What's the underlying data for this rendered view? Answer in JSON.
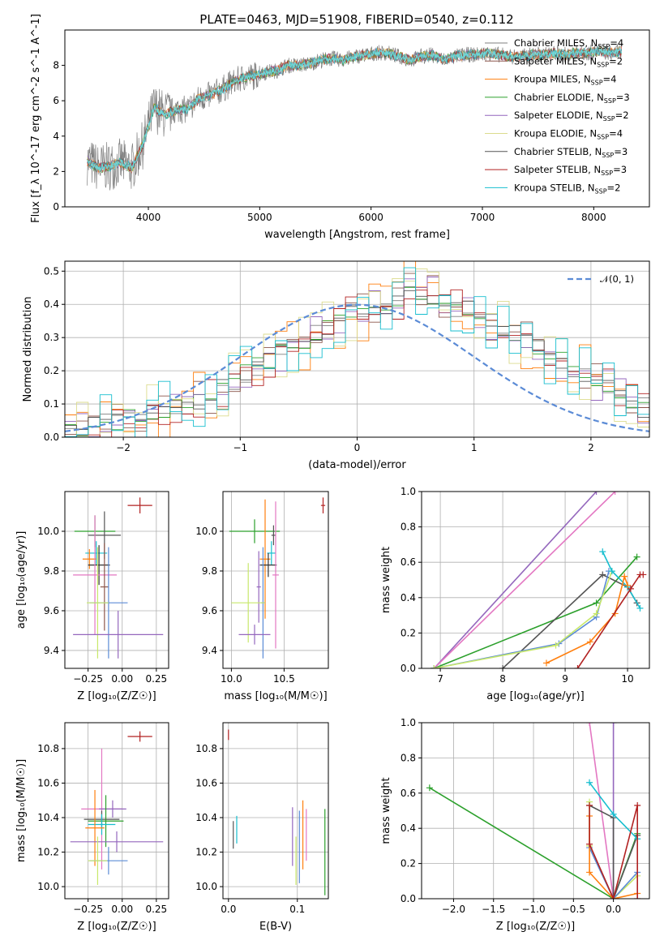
{
  "figure_title": "PLATE=0463, MJD=51908, FIBERID=0540, z=0.112",
  "models": [
    {
      "name": "Chabrier MILES",
      "nssp": 4,
      "color": "#7f7f7f"
    },
    {
      "name": "Salpeter MILES",
      "nssp": 2,
      "color": "#8c564b"
    },
    {
      "name": "Kroupa MILES",
      "nssp": 4,
      "color": "#ff7f0e"
    },
    {
      "name": "Chabrier ELODIE",
      "nssp": 3,
      "color": "#2ca02c"
    },
    {
      "name": "Salpeter ELODIE",
      "nssp": 2,
      "color": "#9467bd"
    },
    {
      "name": "Kroupa ELODIE",
      "nssp": 4,
      "color": "#dbdb8d"
    },
    {
      "name": "Chabrier STELIB",
      "nssp": 3,
      "color": "#555555"
    },
    {
      "name": "Salpeter STELIB",
      "nssp": 3,
      "color": "#b22222"
    },
    {
      "name": "Kroupa STELIB",
      "nssp": 2,
      "color": "#17becf"
    }
  ],
  "chart_data": [
    {
      "id": "spectrum",
      "type": "line",
      "xlabel": "wavelength [Angstrom, rest frame]",
      "ylabel": "Flux [f_λ 10^-17 erg cm^-2 s^-1 A^-1]",
      "xlim": [
        3250,
        8500
      ],
      "ylim": [
        0,
        10
      ],
      "xticks": [
        4000,
        5000,
        6000,
        7000,
        8000
      ],
      "yticks": [
        0,
        2,
        4,
        6,
        8
      ],
      "legend_position": "top-right",
      "x": [
        3450,
        3550,
        3650,
        3750,
        3850,
        3950,
        4050,
        4150,
        4250,
        4350,
        4450,
        4550,
        4650,
        4750,
        4850,
        4950,
        5050,
        5150,
        5250,
        5350,
        5450,
        5550,
        5650,
        5750,
        5850,
        5950,
        6050,
        6150,
        6250,
        6350,
        6450,
        6550,
        6650,
        6750,
        6850,
        6950,
        7050,
        7150,
        7250,
        7350,
        7450,
        7550,
        7650,
        7750,
        7850,
        7950,
        8050,
        8150,
        8250
      ],
      "flux": [
        2.6,
        2.2,
        2.3,
        2.5,
        2.2,
        3.5,
        5.6,
        5.2,
        5.5,
        5.5,
        6.1,
        6.3,
        6.6,
        7.0,
        7.3,
        7.4,
        7.6,
        7.7,
        8.0,
        8.0,
        8.1,
        8.3,
        8.4,
        8.3,
        8.5,
        8.6,
        8.7,
        8.7,
        8.5,
        8.3,
        8.5,
        8.6,
        8.3,
        8.5,
        8.6,
        8.6,
        8.7,
        8.6,
        8.5,
        8.5,
        8.6,
        8.6,
        8.7,
        8.6,
        8.7,
        8.7,
        8.8,
        8.7,
        8.8
      ],
      "observed_color": "#808080",
      "model_color": "#6fd6d6"
    },
    {
      "id": "residuals",
      "type": "line",
      "xlabel": "(data-model)/error",
      "ylabel": "Normed distribution",
      "xlim": [
        -2.5,
        2.5
      ],
      "ylim": [
        0,
        0.53
      ],
      "xticks": [
        -2,
        -1,
        0,
        1,
        2
      ],
      "yticks": [
        0.0,
        0.1,
        0.2,
        0.3,
        0.4,
        0.5
      ],
      "legend": [
        {
          "name": "𝒩(0, 1)",
          "color": "#5b8bd6"
        }
      ],
      "legend_position": "top-right",
      "bin_width": 0.1,
      "bin_start": -2.5,
      "heights": [
        0.012,
        0.025,
        0.03,
        0.04,
        0.048,
        0.055,
        0.06,
        0.07,
        0.08,
        0.09,
        0.1,
        0.11,
        0.13,
        0.15,
        0.17,
        0.19,
        0.21,
        0.23,
        0.25,
        0.27,
        0.29,
        0.31,
        0.33,
        0.35,
        0.37,
        0.38,
        0.39,
        0.38,
        0.4,
        0.45,
        0.44,
        0.43,
        0.4,
        0.39,
        0.38,
        0.36,
        0.35,
        0.33,
        0.31,
        0.29,
        0.27,
        0.25,
        0.23,
        0.21,
        0.19,
        0.17,
        0.15,
        0.13,
        0.11,
        0.09
      ]
    },
    {
      "id": "age-vs-z",
      "type": "scatter",
      "xlabel": "Z [log₁₀(Z/Z☉)]",
      "ylabel": "age  [log₁₀(age/yr)]",
      "xlim": [
        -0.42,
        0.34
      ],
      "ylim": [
        9.31,
        10.2
      ],
      "xticks": [
        -0.25,
        0.0,
        0.25
      ],
      "yticks": [
        9.4,
        9.6,
        9.8,
        10.0
      ],
      "points": [
        {
          "x": -0.2,
          "y": 10.0,
          "xerr": 0.15,
          "yerr": 0.08,
          "color": "#2ca02c"
        },
        {
          "x": -0.13,
          "y": 9.98,
          "xerr": 0.12,
          "yerr": 0.12,
          "color": "#555555"
        },
        {
          "x": -0.19,
          "y": 9.89,
          "xerr": 0.08,
          "yerr": 0.06,
          "color": "#17becf"
        },
        {
          "x": -0.24,
          "y": 9.86,
          "xerr": 0.05,
          "yerr": 0.05,
          "color": "#ff7f0e"
        },
        {
          "x": -0.17,
          "y": 9.83,
          "xerr": 0.08,
          "yerr": 0.1,
          "color": "#333333"
        },
        {
          "x": -0.2,
          "y": 9.78,
          "xerr": 0.16,
          "yerr": 0.3,
          "color": "#e377c2"
        },
        {
          "x": -0.13,
          "y": 9.72,
          "xerr": 0.03,
          "yerr": 0.22,
          "color": "#8c564b"
        },
        {
          "x": -0.1,
          "y": 9.64,
          "xerr": 0.14,
          "yerr": 0.28,
          "color": "#5b8bd6"
        },
        {
          "x": -0.18,
          "y": 9.64,
          "xerr": 0.08,
          "yerr": 0.28,
          "color": "#c8e86a"
        },
        {
          "x": -0.03,
          "y": 9.48,
          "xerr": 0.33,
          "yerr": 0.12,
          "color": "#9467bd"
        },
        {
          "x": 0.13,
          "y": 10.13,
          "xerr": 0.09,
          "yerr": 0.04,
          "color": "#b22222"
        }
      ]
    },
    {
      "id": "age-vs-mass",
      "type": "scatter",
      "xlabel": "mass [log₁₀(M/M☉)]",
      "ylabel": "",
      "xlim": [
        9.92,
        10.92
      ],
      "ylim": [
        9.31,
        10.2
      ],
      "xticks": [
        10.0,
        10.5
      ],
      "yticks": [
        9.4,
        9.6,
        9.8,
        10.0
      ],
      "points": [
        {
          "x": 10.22,
          "y": 10.0,
          "xerr": 0.24,
          "yerr": 0.06,
          "color": "#2ca02c"
        },
        {
          "x": 10.4,
          "y": 9.98,
          "xerr": 0.02,
          "yerr": 0.05,
          "color": "#555555"
        },
        {
          "x": 10.38,
          "y": 9.89,
          "xerr": 0.04,
          "yerr": 0.06,
          "color": "#17becf"
        },
        {
          "x": 10.32,
          "y": 9.86,
          "xerr": 0.05,
          "yerr": 0.3,
          "color": "#ff7f0e"
        },
        {
          "x": 10.35,
          "y": 9.83,
          "xerr": 0.08,
          "yerr": 0.06,
          "color": "#333333"
        },
        {
          "x": 10.42,
          "y": 9.78,
          "xerr": 0.03,
          "yerr": 0.37,
          "color": "#e377c2"
        },
        {
          "x": 10.26,
          "y": 9.72,
          "xerr": 0.02,
          "yerr": 0.18,
          "color": "#9467bd"
        },
        {
          "x": 10.3,
          "y": 9.64,
          "xerr": 0.02,
          "yerr": 0.28,
          "color": "#5b8bd6"
        },
        {
          "x": 10.16,
          "y": 9.64,
          "xerr": 0.16,
          "yerr": 0.2,
          "color": "#c8e86a"
        },
        {
          "x": 10.22,
          "y": 9.48,
          "xerr": 0.15,
          "yerr": 0.05,
          "color": "#9467bd"
        },
        {
          "x": 10.87,
          "y": 10.13,
          "xerr": 0.02,
          "yerr": 0.04,
          "color": "#b22222"
        }
      ]
    },
    {
      "id": "weight-vs-age",
      "type": "line",
      "xlabel": "age  [log₁₀(age/yr)]",
      "ylabel": "mass weight",
      "xlim": [
        6.7,
        10.35
      ],
      "ylim": [
        0,
        1
      ],
      "xticks": [
        7,
        8,
        9,
        10
      ],
      "yticks": [
        0.0,
        0.2,
        0.4,
        0.6,
        0.8,
        1.0
      ],
      "series": [
        {
          "color": "#9467bd",
          "x": [
            6.9,
            9.5
          ],
          "y": [
            0.0,
            1.0
          ]
        },
        {
          "color": "#e377c2",
          "x": [
            6.9,
            9.8
          ],
          "y": [
            0.0,
            1.0
          ]
        },
        {
          "color": "#2ca02c",
          "x": [
            6.9,
            9.5,
            10.15
          ],
          "y": [
            0.0,
            0.37,
            0.63
          ]
        },
        {
          "color": "#555555",
          "x": [
            8.0,
            9.6,
            10.0,
            10.15
          ],
          "y": [
            0.0,
            0.53,
            0.46,
            0.37
          ]
        },
        {
          "color": "#5b8bd6",
          "x": [
            6.9,
            8.9,
            9.5,
            9.7
          ],
          "y": [
            0.0,
            0.14,
            0.29,
            0.55
          ]
        },
        {
          "color": "#c8e86a",
          "x": [
            6.9,
            8.85,
            9.5,
            9.75
          ],
          "y": [
            0.0,
            0.13,
            0.31,
            0.55
          ]
        },
        {
          "color": "#17becf",
          "x": [
            9.6,
            9.75,
            10.0,
            10.2
          ],
          "y": [
            0.66,
            0.55,
            0.46,
            0.34
          ]
        },
        {
          "color": "#ff7f0e",
          "x": [
            8.7,
            9.4,
            9.8,
            9.95,
            10.0
          ],
          "y": [
            0.03,
            0.15,
            0.31,
            0.52,
            0.47
          ]
        },
        {
          "color": "#b22222",
          "x": [
            9.2,
            10.05,
            10.2,
            10.25
          ],
          "y": [
            0.0,
            0.45,
            0.53,
            0.53
          ]
        }
      ]
    },
    {
      "id": "mass-vs-z",
      "type": "scatter",
      "xlabel": "Z [log₁₀(Z/Z☉)]",
      "ylabel": "mass [log₁₀(M/M☉)]",
      "xlim": [
        -0.42,
        0.34
      ],
      "ylim": [
        9.93,
        10.95
      ],
      "xticks": [
        -0.25,
        0.0,
        0.25
      ],
      "yticks": [
        10.0,
        10.2,
        10.4,
        10.6,
        10.8
      ],
      "points": [
        {
          "x": -0.15,
          "y": 10.45,
          "xerr": 0.15,
          "yerr": 0.35,
          "color": "#e377c2"
        },
        {
          "x": -0.07,
          "y": 10.45,
          "xerr": 0.1,
          "yerr": 0.05,
          "color": "#9467bd"
        },
        {
          "x": -0.15,
          "y": 10.39,
          "xerr": 0.13,
          "yerr": 0.05,
          "color": "#555555"
        },
        {
          "x": -0.12,
          "y": 10.38,
          "xerr": 0.13,
          "yerr": 0.15,
          "color": "#2ca02c"
        },
        {
          "x": -0.15,
          "y": 10.36,
          "xerr": 0.1,
          "yerr": 0.06,
          "color": "#17becf"
        },
        {
          "x": -0.2,
          "y": 10.34,
          "xerr": 0.07,
          "yerr": 0.22,
          "color": "#ff7f0e"
        },
        {
          "x": -0.04,
          "y": 10.26,
          "xerr": 0.34,
          "yerr": 0.06,
          "color": "#9467bd"
        },
        {
          "x": -0.1,
          "y": 10.15,
          "xerr": 0.14,
          "yerr": 0.08,
          "color": "#5b8bd6"
        },
        {
          "x": -0.18,
          "y": 10.15,
          "xerr": 0.07,
          "yerr": 0.14,
          "color": "#c8e86a"
        },
        {
          "x": 0.13,
          "y": 10.87,
          "xerr": 0.09,
          "yerr": 0.03,
          "color": "#b22222"
        }
      ]
    },
    {
      "id": "mass-vs-ebv",
      "type": "scatter",
      "xlabel": "E(B-V)",
      "ylabel": "",
      "xlim": [
        -0.008,
        0.145
      ],
      "ylim": [
        9.93,
        10.95
      ],
      "xticks": [
        0.0,
        0.1
      ],
      "yticks": [
        10.0,
        10.2,
        10.4,
        10.6,
        10.8
      ],
      "points": [
        {
          "x": 0.0,
          "y": 10.88,
          "xerr": 0.0,
          "yerr": 0.03,
          "color": "#b22222"
        },
        {
          "x": 0.007,
          "y": 10.3,
          "xerr": 0.0,
          "yerr": 0.08,
          "color": "#555555"
        },
        {
          "x": 0.012,
          "y": 10.33,
          "xerr": 0.0,
          "yerr": 0.08,
          "color": "#17becf"
        },
        {
          "x": 0.093,
          "y": 10.29,
          "xerr": 0.0,
          "yerr": 0.17,
          "color": "#9467bd"
        },
        {
          "x": 0.098,
          "y": 10.15,
          "xerr": 0.0,
          "yerr": 0.14,
          "color": "#c8e86a"
        },
        {
          "x": 0.103,
          "y": 10.23,
          "xerr": 0.0,
          "yerr": 0.21,
          "color": "#5b8bd6"
        },
        {
          "x": 0.108,
          "y": 10.3,
          "xerr": 0.0,
          "yerr": 0.2,
          "color": "#ff7f0e"
        },
        {
          "x": 0.113,
          "y": 10.3,
          "xerr": 0.0,
          "yerr": 0.15,
          "color": "#e377c2"
        },
        {
          "x": 0.14,
          "y": 10.2,
          "xerr": 0.0,
          "yerr": 0.25,
          "color": "#2ca02c"
        }
      ]
    },
    {
      "id": "weight-vs-z",
      "type": "line",
      "xlabel": "Z [log₁₀(Z/Z☉)]",
      "ylabel": "mass weight",
      "xlim": [
        -2.4,
        0.45
      ],
      "ylim": [
        0,
        1
      ],
      "xticks": [
        -2.0,
        -1.5,
        -1.0,
        -0.5,
        0.0
      ],
      "yticks": [
        0.0,
        0.2,
        0.4,
        0.6,
        0.8,
        1.0
      ],
      "series": [
        {
          "color": "#2ca02c",
          "x": [
            -2.3,
            0.0,
            0.3
          ],
          "y": [
            0.63,
            0.0,
            0.37
          ]
        },
        {
          "color": "#e377c2",
          "x": [
            -0.3,
            0.0
          ],
          "y": [
            1.0,
            0.0
          ]
        },
        {
          "color": "#9467bd",
          "x": [
            0.0,
            0.0
          ],
          "y": [
            1.0,
            0.0
          ]
        },
        {
          "color": "#555555",
          "x": [
            -0.3,
            0.0,
            0.0,
            0.3
          ],
          "y": [
            0.53,
            0.46,
            0.0,
            0.36
          ]
        },
        {
          "color": "#17becf",
          "x": [
            -0.3,
            0.0,
            0.3
          ],
          "y": [
            0.66,
            0.48,
            0.34
          ]
        },
        {
          "color": "#c8e86a",
          "x": [
            -0.3,
            -0.3,
            0.0,
            0.3
          ],
          "y": [
            0.55,
            0.3,
            0.0,
            0.13
          ]
        },
        {
          "color": "#5b8bd6",
          "x": [
            -0.3,
            0.0,
            0.3
          ],
          "y": [
            0.29,
            0.0,
            0.15
          ]
        },
        {
          "color": "#ff7f0e",
          "x": [
            -0.3,
            -0.3,
            0.0,
            0.3
          ],
          "y": [
            0.47,
            0.15,
            0.0,
            0.03
          ]
        },
        {
          "color": "#b22222",
          "x": [
            -0.3,
            -0.3,
            0.0,
            0.3,
            0.3
          ],
          "y": [
            0.53,
            0.31,
            0.0,
            0.53,
            0.0
          ]
        }
      ]
    }
  ]
}
